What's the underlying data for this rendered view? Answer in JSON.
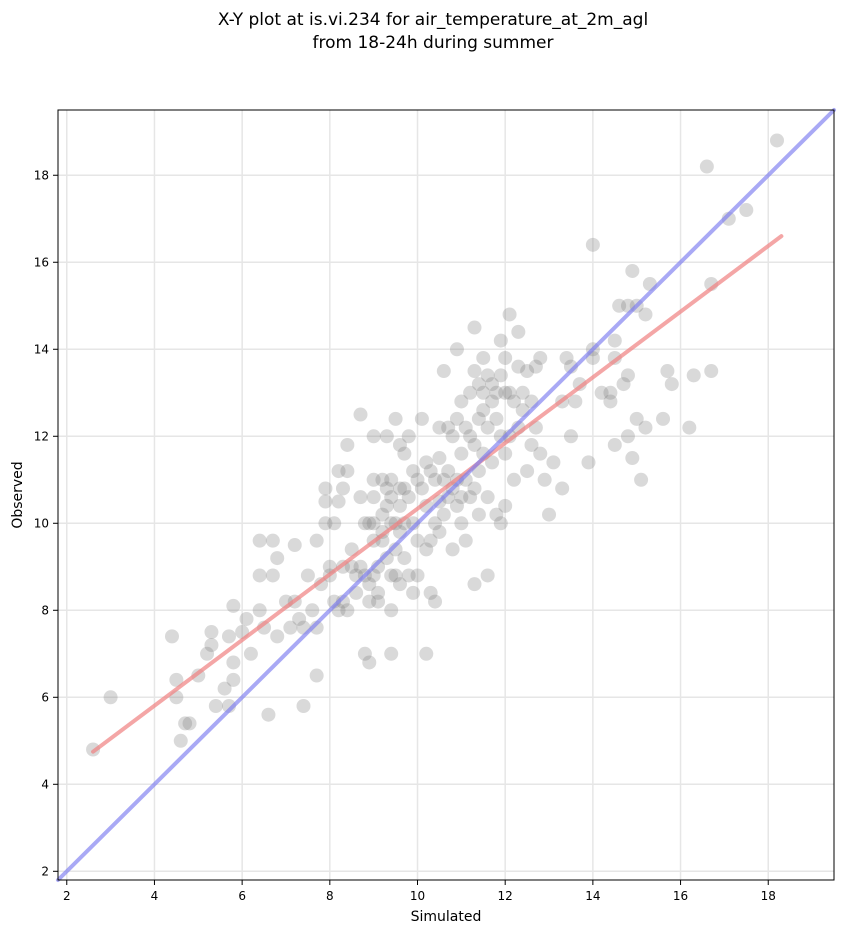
{
  "chart_data": {
    "type": "scatter",
    "title": "X-Y plot at is.vi.234 for air_temperature_at_2m_agl",
    "subtitle": "from 18-24h during summer",
    "xlabel": "Simulated",
    "ylabel": "Observed",
    "xlim": [
      1.8,
      19.5
    ],
    "ylim": [
      1.8,
      19.5
    ],
    "x_ticks": [
      2,
      4,
      6,
      8,
      10,
      12,
      14,
      16,
      18
    ],
    "y_ticks": [
      2,
      4,
      6,
      8,
      10,
      12,
      14,
      16,
      18
    ],
    "grid": true,
    "colors": {
      "points": "#808080",
      "fit_line": "#f08080",
      "identity_line": "#7b7bf0",
      "grid": "#e6e6e6"
    },
    "points": [
      [
        2.6,
        4.8
      ],
      [
        3.0,
        6.0
      ],
      [
        4.4,
        7.4
      ],
      [
        4.5,
        6.4
      ],
      [
        4.5,
        6.0
      ],
      [
        4.6,
        5.0
      ],
      [
        4.7,
        5.4
      ],
      [
        4.8,
        5.4
      ],
      [
        5.0,
        6.5
      ],
      [
        5.2,
        7.0
      ],
      [
        5.3,
        7.5
      ],
      [
        5.3,
        7.2
      ],
      [
        5.4,
        5.8
      ],
      [
        5.6,
        6.2
      ],
      [
        5.7,
        7.4
      ],
      [
        5.7,
        5.8
      ],
      [
        5.8,
        8.1
      ],
      [
        5.8,
        6.8
      ],
      [
        5.8,
        6.4
      ],
      [
        6.0,
        7.5
      ],
      [
        6.1,
        7.8
      ],
      [
        6.2,
        7.0
      ],
      [
        6.4,
        9.6
      ],
      [
        6.4,
        8.8
      ],
      [
        6.4,
        8.0
      ],
      [
        6.5,
        7.6
      ],
      [
        6.6,
        5.6
      ],
      [
        6.7,
        9.6
      ],
      [
        6.7,
        8.8
      ],
      [
        6.8,
        9.2
      ],
      [
        6.8,
        7.4
      ],
      [
        7.0,
        8.2
      ],
      [
        7.1,
        7.6
      ],
      [
        7.2,
        9.5
      ],
      [
        7.2,
        8.2
      ],
      [
        7.3,
        7.8
      ],
      [
        7.4,
        5.8
      ],
      [
        7.4,
        7.6
      ],
      [
        7.5,
        8.8
      ],
      [
        7.6,
        8.0
      ],
      [
        7.7,
        9.6
      ],
      [
        7.7,
        7.6
      ],
      [
        7.7,
        6.5
      ],
      [
        7.8,
        8.6
      ],
      [
        7.9,
        10.8
      ],
      [
        7.9,
        10.5
      ],
      [
        7.9,
        10.0
      ],
      [
        8.0,
        9.0
      ],
      [
        8.0,
        8.8
      ],
      [
        8.1,
        8.2
      ],
      [
        8.1,
        10.0
      ],
      [
        8.2,
        11.2
      ],
      [
        8.2,
        10.5
      ],
      [
        8.2,
        8.0
      ],
      [
        8.3,
        10.8
      ],
      [
        8.3,
        9.0
      ],
      [
        8.3,
        8.2
      ],
      [
        8.4,
        11.8
      ],
      [
        8.4,
        11.2
      ],
      [
        8.4,
        8.0
      ],
      [
        8.5,
        9.4
      ],
      [
        8.5,
        9.0
      ],
      [
        8.6,
        8.8
      ],
      [
        8.6,
        8.4
      ],
      [
        8.7,
        12.5
      ],
      [
        8.7,
        10.6
      ],
      [
        8.7,
        9.0
      ],
      [
        8.8,
        10.0
      ],
      [
        8.8,
        8.8
      ],
      [
        8.8,
        7.0
      ],
      [
        8.9,
        10.0
      ],
      [
        8.9,
        8.6
      ],
      [
        8.9,
        8.2
      ],
      [
        8.9,
        6.8
      ],
      [
        9.0,
        12.0
      ],
      [
        9.0,
        11.0
      ],
      [
        9.0,
        10.6
      ],
      [
        9.0,
        10.0
      ],
      [
        9.0,
        9.6
      ],
      [
        9.0,
        8.8
      ],
      [
        9.1,
        8.4
      ],
      [
        9.1,
        9.0
      ],
      [
        9.1,
        8.2
      ],
      [
        9.2,
        11.0
      ],
      [
        9.2,
        10.2
      ],
      [
        9.2,
        9.8
      ],
      [
        9.2,
        9.6
      ],
      [
        9.3,
        12.0
      ],
      [
        9.3,
        10.8
      ],
      [
        9.3,
        10.4
      ],
      [
        9.3,
        9.2
      ],
      [
        9.4,
        11.0
      ],
      [
        9.4,
        10.6
      ],
      [
        9.4,
        10.0
      ],
      [
        9.4,
        8.8
      ],
      [
        9.4,
        8.0
      ],
      [
        9.4,
        7.0
      ],
      [
        9.5,
        12.4
      ],
      [
        9.5,
        10.0
      ],
      [
        9.5,
        9.4
      ],
      [
        9.5,
        8.8
      ],
      [
        9.6,
        11.8
      ],
      [
        9.6,
        10.8
      ],
      [
        9.6,
        10.4
      ],
      [
        9.6,
        9.8
      ],
      [
        9.6,
        8.6
      ],
      [
        9.7,
        11.6
      ],
      [
        9.7,
        10.8
      ],
      [
        9.7,
        10.0
      ],
      [
        9.7,
        9.2
      ],
      [
        9.8,
        12.0
      ],
      [
        9.8,
        10.6
      ],
      [
        9.8,
        8.8
      ],
      [
        9.9,
        11.2
      ],
      [
        9.9,
        10.0
      ],
      [
        9.9,
        8.4
      ],
      [
        10.0,
        11.0
      ],
      [
        10.0,
        9.6
      ],
      [
        10.0,
        8.8
      ],
      [
        10.1,
        12.4
      ],
      [
        10.1,
        10.8
      ],
      [
        10.2,
        11.4
      ],
      [
        10.2,
        10.4
      ],
      [
        10.2,
        9.4
      ],
      [
        10.2,
        7.0
      ],
      [
        10.3,
        11.2
      ],
      [
        10.3,
        9.6
      ],
      [
        10.3,
        8.4
      ],
      [
        10.4,
        11.0
      ],
      [
        10.4,
        10.0
      ],
      [
        10.4,
        8.2
      ],
      [
        10.5,
        12.2
      ],
      [
        10.5,
        11.5
      ],
      [
        10.5,
        10.5
      ],
      [
        10.5,
        9.8
      ],
      [
        10.6,
        13.5
      ],
      [
        10.6,
        11.0
      ],
      [
        10.6,
        10.2
      ],
      [
        10.7,
        12.2
      ],
      [
        10.7,
        11.2
      ],
      [
        10.7,
        10.6
      ],
      [
        10.8,
        12.0
      ],
      [
        10.8,
        10.8
      ],
      [
        10.8,
        9.4
      ],
      [
        10.9,
        14.0
      ],
      [
        10.9,
        12.4
      ],
      [
        10.9,
        11.0
      ],
      [
        10.9,
        10.4
      ],
      [
        11.0,
        12.8
      ],
      [
        11.0,
        11.6
      ],
      [
        11.0,
        10.6
      ],
      [
        11.0,
        10.0
      ],
      [
        11.1,
        12.2
      ],
      [
        11.1,
        11.0
      ],
      [
        11.1,
        9.6
      ],
      [
        11.2,
        13.0
      ],
      [
        11.2,
        12.0
      ],
      [
        11.2,
        10.6
      ],
      [
        11.3,
        14.5
      ],
      [
        11.3,
        13.5
      ],
      [
        11.3,
        11.8
      ],
      [
        11.3,
        10.8
      ],
      [
        11.3,
        8.6
      ],
      [
        11.4,
        13.2
      ],
      [
        11.4,
        12.4
      ],
      [
        11.4,
        11.2
      ],
      [
        11.4,
        10.2
      ],
      [
        11.5,
        13.8
      ],
      [
        11.5,
        13.0
      ],
      [
        11.5,
        12.6
      ],
      [
        11.5,
        11.6
      ],
      [
        11.6,
        13.4
      ],
      [
        11.6,
        12.2
      ],
      [
        11.6,
        10.6
      ],
      [
        11.6,
        8.8
      ],
      [
        11.7,
        13.2
      ],
      [
        11.7,
        12.8
      ],
      [
        11.7,
        11.4
      ],
      [
        11.8,
        13.0
      ],
      [
        11.8,
        12.4
      ],
      [
        11.8,
        10.2
      ],
      [
        11.9,
        14.2
      ],
      [
        11.9,
        13.4
      ],
      [
        11.9,
        12.0
      ],
      [
        11.9,
        10.0
      ],
      [
        12.0,
        13.8
      ],
      [
        12.0,
        13.0
      ],
      [
        12.0,
        11.6
      ],
      [
        12.0,
        10.4
      ],
      [
        12.1,
        14.8
      ],
      [
        12.1,
        13.0
      ],
      [
        12.1,
        12.0
      ],
      [
        12.2,
        12.8
      ],
      [
        12.2,
        11.0
      ],
      [
        12.3,
        14.4
      ],
      [
        12.3,
        13.6
      ],
      [
        12.3,
        12.2
      ],
      [
        12.4,
        13.0
      ],
      [
        12.4,
        12.6
      ],
      [
        12.5,
        13.5
      ],
      [
        12.5,
        11.2
      ],
      [
        12.6,
        12.8
      ],
      [
        12.6,
        11.8
      ],
      [
        12.7,
        13.6
      ],
      [
        12.7,
        12.2
      ],
      [
        12.8,
        13.8
      ],
      [
        12.8,
        11.6
      ],
      [
        12.9,
        11.0
      ],
      [
        13.0,
        10.2
      ],
      [
        13.1,
        11.4
      ],
      [
        13.3,
        12.8
      ],
      [
        13.3,
        10.8
      ],
      [
        13.4,
        13.8
      ],
      [
        13.5,
        13.6
      ],
      [
        13.5,
        12.0
      ],
      [
        13.6,
        12.8
      ],
      [
        13.7,
        13.2
      ],
      [
        13.9,
        11.4
      ],
      [
        14.0,
        16.4
      ],
      [
        14.0,
        14.0
      ],
      [
        14.0,
        13.8
      ],
      [
        14.2,
        13.0
      ],
      [
        14.4,
        13.0
      ],
      [
        14.4,
        12.8
      ],
      [
        14.5,
        14.2
      ],
      [
        14.5,
        13.8
      ],
      [
        14.5,
        11.8
      ],
      [
        14.6,
        15.0
      ],
      [
        14.7,
        13.2
      ],
      [
        14.8,
        15.0
      ],
      [
        14.8,
        13.4
      ],
      [
        14.8,
        12.0
      ],
      [
        14.9,
        15.8
      ],
      [
        14.9,
        11.5
      ],
      [
        15.0,
        12.4
      ],
      [
        15.0,
        15.0
      ],
      [
        15.1,
        11.0
      ],
      [
        15.2,
        14.8
      ],
      [
        15.2,
        12.2
      ],
      [
        15.3,
        15.5
      ],
      [
        15.6,
        12.4
      ],
      [
        15.7,
        13.5
      ],
      [
        15.8,
        13.2
      ],
      [
        16.2,
        12.2
      ],
      [
        16.3,
        13.4
      ],
      [
        16.6,
        18.2
      ],
      [
        16.7,
        13.5
      ],
      [
        16.7,
        15.5
      ],
      [
        17.1,
        17.0
      ],
      [
        17.5,
        17.2
      ],
      [
        18.2,
        18.8
      ]
    ],
    "fit_line": {
      "x": [
        2.6,
        18.3
      ],
      "y": [
        4.75,
        16.6
      ]
    },
    "identity_line": {
      "x": [
        1.8,
        19.5
      ],
      "y": [
        1.8,
        19.5
      ]
    }
  }
}
